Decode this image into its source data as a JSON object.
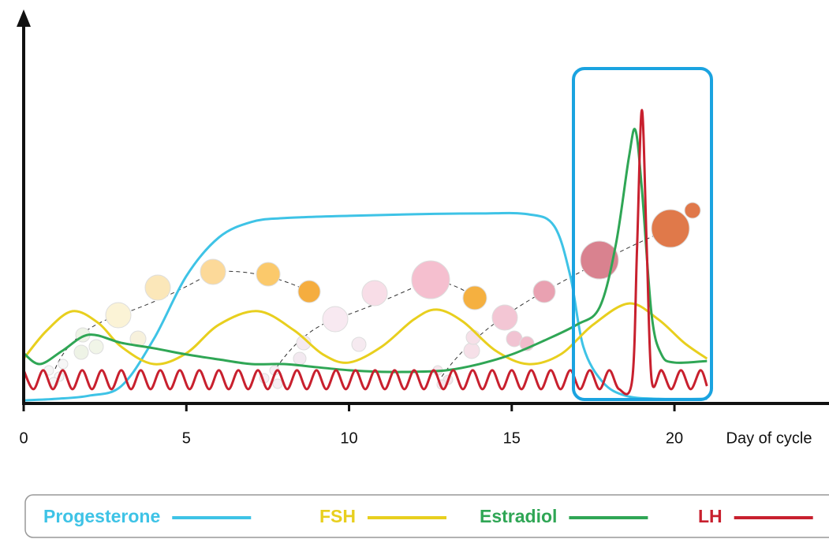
{
  "chart_data": {
    "type": "line",
    "x_label": "Day of cycle",
    "xlim": [
      0,
      24.75
    ],
    "xticks": [
      0,
      5,
      10,
      15,
      20
    ],
    "ylim": [
      0,
      100
    ],
    "series": [
      {
        "name": "Progesterone",
        "color": "#3ec3e6",
        "x": [
          0,
          1,
          2,
          3,
          4,
          5,
          6,
          7,
          8,
          10,
          12,
          14,
          15.5,
          16.3,
          16.8,
          17.2,
          17.8,
          18.5,
          19.5,
          21
        ],
        "values": [
          0.8,
          1.2,
          2,
          4.5,
          16.7,
          33,
          43,
          47,
          48,
          48.6,
          49,
          49.2,
          49,
          46,
          33,
          14.7,
          5.5,
          2,
          1.2,
          1.2
        ]
      },
      {
        "name": "FSH",
        "color": "#e8cf1e",
        "x": [
          0,
          0.7,
          1.5,
          2.3,
          3,
          4,
          5,
          6,
          7.2,
          8.3,
          9.2,
          10,
          11,
          12,
          12.7,
          13.5,
          14.5,
          15.5,
          16.5,
          17.5,
          18.6,
          19.5,
          20.3,
          21
        ],
        "values": [
          11.6,
          18.8,
          23.9,
          20.8,
          14.7,
          10.2,
          13,
          20.4,
          23.9,
          19,
          12.7,
          10.6,
          14.7,
          21.8,
          24.3,
          21.2,
          13.7,
          10.2,
          12.7,
          20.4,
          25.9,
          21.8,
          15.7,
          11.6
        ]
      },
      {
        "name": "Estradiol",
        "color": "#2fa655",
        "x": [
          0,
          0.5,
          1.2,
          2,
          3,
          4,
          5,
          6,
          7,
          8,
          9,
          10,
          11,
          12,
          13,
          14,
          15,
          16,
          17,
          17.7,
          18.2,
          18.6,
          18.8,
          19,
          19.3,
          19.6,
          20,
          21
        ],
        "values": [
          13,
          10.2,
          13.7,
          17.8,
          15.7,
          14.3,
          12.7,
          11.4,
          10.2,
          10.2,
          9.4,
          8.6,
          8.2,
          8.2,
          8.6,
          10.2,
          12.7,
          16.3,
          20.4,
          24.9,
          41.2,
          63.7,
          70.8,
          55.5,
          22.9,
          12.7,
          10.6,
          11
        ]
      },
      {
        "name": "LH",
        "color": "#c8202e",
        "x": [
          0,
          0.3,
          0.6,
          0.9,
          1.2,
          1.5,
          1.8,
          2.1,
          2.4,
          2.7,
          3,
          3.3,
          3.6,
          3.9,
          4.2,
          4.5,
          4.8,
          5.1,
          5.4,
          5.7,
          6,
          6.3,
          6.6,
          6.9,
          7.2,
          7.5,
          7.8,
          8.1,
          8.4,
          8.7,
          9,
          9.3,
          9.6,
          9.9,
          10.2,
          10.5,
          10.8,
          11.1,
          11.4,
          11.7,
          12,
          12.3,
          12.6,
          12.9,
          13.2,
          13.5,
          13.8,
          14.1,
          14.4,
          14.7,
          15,
          15.3,
          15.6,
          15.9,
          16.2,
          16.5,
          16.8,
          17.1,
          17.4,
          17.7,
          18,
          18.3,
          18.7,
          18.85,
          19,
          19.15,
          19.3,
          19.6,
          19.9,
          20.2,
          20.5,
          20.8,
          21
        ],
        "values": [
          8.6,
          3.7,
          8.6,
          3.7,
          8.6,
          3.7,
          8.6,
          3.7,
          8.6,
          3.7,
          8.6,
          3.7,
          8.6,
          3.7,
          8.6,
          3.7,
          8.6,
          3.7,
          8.6,
          3.7,
          8.6,
          3.7,
          8.6,
          3.7,
          8.6,
          3.7,
          8.6,
          3.7,
          8.6,
          3.7,
          8.6,
          3.7,
          8.6,
          3.7,
          8.6,
          3.7,
          8.6,
          3.7,
          8.6,
          3.7,
          8.6,
          3.7,
          8.6,
          3.7,
          8.6,
          3.7,
          8.6,
          3.7,
          8.6,
          3.7,
          8.6,
          3.7,
          8.6,
          3.7,
          8.6,
          3.7,
          8.6,
          3.7,
          8.6,
          3.7,
          8.6,
          3.7,
          6,
          40,
          76,
          40,
          6,
          8.6,
          3.7,
          8.6,
          3.7,
          8.6,
          4.5
        ]
      }
    ]
  }
}
